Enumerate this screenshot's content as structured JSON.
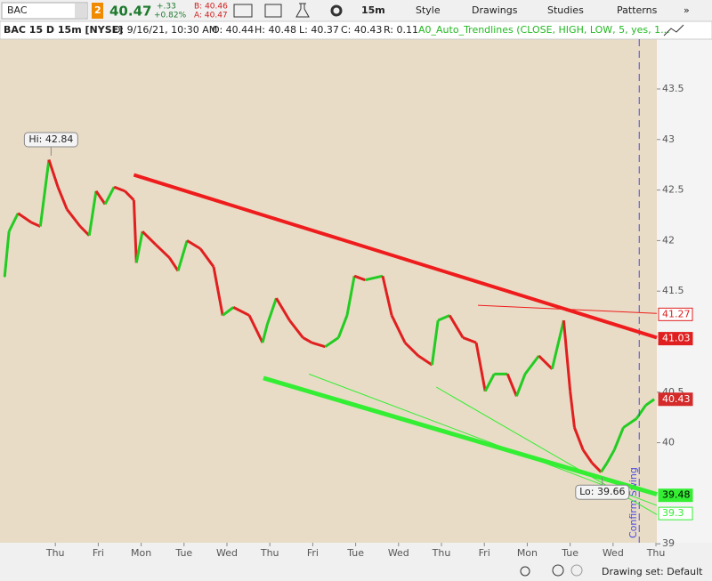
{
  "toolbar": {
    "symbol": "BAC",
    "link_number": "2",
    "last": "40.47",
    "change": "+.33",
    "change_pct": "+0.82%",
    "bid": "B: 40.46",
    "ask": "A: 40.47",
    "timeframe": "15m",
    "buttons": [
      "Style",
      "Drawings",
      "Studies",
      "Patterns"
    ]
  },
  "info_bar": {
    "symbol": "BAC 15 D 15m [NYSE]",
    "items": [
      "D: 9/16/21, 10:30 AM",
      "O: 40.44",
      "H: 40.48",
      "L: 40.37",
      "C: 40.43",
      "R: 0.11"
    ],
    "study": "A0_Auto_Trendlines (CLOSE, HIGH, LOW, 5, yes, 1..."
  },
  "chart_data": {
    "type": "line",
    "x": [
      -1.18,
      -1.08,
      -0.87,
      -0.56,
      -0.35,
      -0.15,
      0.06,
      0.27,
      0.58,
      0.79,
      0.95,
      1.16,
      1.37,
      1.62,
      1.83,
      1.89,
      2.03,
      2.34,
      2.66,
      2.86,
      3.07,
      3.38,
      3.69,
      3.9,
      4.15,
      4.52,
      4.83,
      4.94,
      5.15,
      5.46,
      5.77,
      5.98,
      6.29,
      6.6,
      6.8,
      6.97,
      7.22,
      7.63,
      7.84,
      8.15,
      8.46,
      8.78,
      8.92,
      9.19,
      9.5,
      9.81,
      10.02,
      10.23,
      10.54,
      10.75,
      10.95,
      11.27,
      11.58,
      11.85,
      12.0,
      12.1,
      12.3,
      12.51,
      12.72,
      12.86,
      13.03,
      13.24,
      13.55,
      13.76,
      13.96
    ],
    "values": [
      41.65,
      42.09,
      42.27,
      42.18,
      42.14,
      42.8,
      42.53,
      42.31,
      42.14,
      42.05,
      42.49,
      42.36,
      42.53,
      42.49,
      42.4,
      41.78,
      42.09,
      41.96,
      41.83,
      41.7,
      42.0,
      41.92,
      41.74,
      41.26,
      41.34,
      41.26,
      40.99,
      41.17,
      41.43,
      41.21,
      41.04,
      40.99,
      40.95,
      41.04,
      41.26,
      41.65,
      41.61,
      41.65,
      41.26,
      40.99,
      40.86,
      40.77,
      41.21,
      41.26,
      41.04,
      40.99,
      40.51,
      40.68,
      40.68,
      40.46,
      40.68,
      40.86,
      40.73,
      41.21,
      40.51,
      40.15,
      39.93,
      39.8,
      39.71,
      39.8,
      39.93,
      40.15,
      40.24,
      40.37,
      40.43
    ],
    "up_color": "#22cc22",
    "down_color": "#e02020",
    "xlim": [
      -1.29,
      14.02
    ],
    "ylim": [
      39,
      44
    ],
    "xticks": [
      {
        "value": 0,
        "label": "Thu"
      },
      {
        "value": 1,
        "label": "Fri"
      },
      {
        "value": 2,
        "label": "Mon"
      },
      {
        "value": 3,
        "label": "Tue"
      },
      {
        "value": 4,
        "label": "Wed"
      },
      {
        "value": 5,
        "label": "Thu"
      },
      {
        "value": 6,
        "label": "Fri"
      },
      {
        "value": 7,
        "label": "Tue"
      },
      {
        "value": 8,
        "label": "Wed"
      },
      {
        "value": 9,
        "label": "Thu"
      },
      {
        "value": 10,
        "label": "Fri"
      },
      {
        "value": 11,
        "label": "Mon"
      },
      {
        "value": 12,
        "label": "Tue"
      },
      {
        "value": 13,
        "label": "Wed"
      },
      {
        "value": 14,
        "label": "Thu"
      }
    ],
    "yticks": [
      39,
      40,
      40.5,
      41.5,
      42,
      42.5,
      43,
      43.5
    ],
    "trendlines": [
      {
        "x": [
          1.83,
          14.02
        ],
        "values": [
          42.65,
          41.04
        ],
        "color": "#ee1c1c"
      },
      {
        "x": [
          9.85,
          14.02
        ],
        "values": [
          41.36,
          41.28
        ],
        "color": "#ee1c1c"
      },
      {
        "x": [
          4.85,
          14.02
        ],
        "values": [
          40.64,
          39.49
        ],
        "color": "#33ee33"
      },
      {
        "x": [
          5.91,
          14.02
        ],
        "values": [
          40.68,
          39.38
        ],
        "color": "#33ee33"
      },
      {
        "x": [
          8.88,
          14.02
        ],
        "values": [
          40.55,
          39.29
        ],
        "color": "#33ee33"
      }
    ],
    "price_labels": [
      {
        "value": 41.27,
        "color": "#e02020",
        "style": "outline"
      },
      {
        "value": 41.03,
        "color": "#e02020",
        "style": "filled"
      },
      {
        "value": 40.43,
        "color": "#d42a2a",
        "style": "filled"
      },
      {
        "value": 39.48,
        "color": "#33ee33",
        "style": "filled"
      },
      {
        "value": 39.3,
        "color": "#33ee33",
        "style": "outline"
      }
    ],
    "annotations": [
      {
        "text": "Hi: 42.84",
        "x": -0.1,
        "value": 42.84
      },
      {
        "text": "Lo: 39.66",
        "x": 12.75,
        "value": 39.66
      }
    ],
    "marker_text": "Confirm Swing",
    "marker_x": 13.61
  },
  "status_bar": {
    "drawing_set": "Drawing set: Default"
  }
}
